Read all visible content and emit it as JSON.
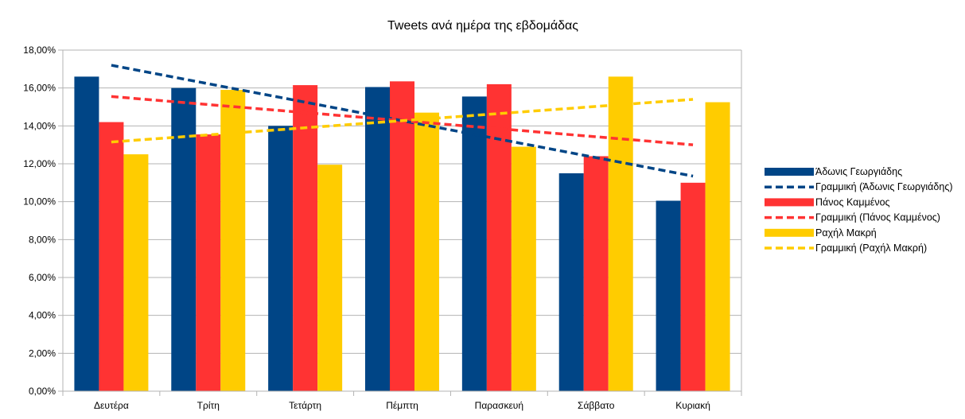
{
  "chart_data": {
    "type": "bar",
    "title": "Tweets ανά ημέρα της εβδομάδας",
    "xlabel": "",
    "ylabel": "",
    "categories": [
      "Δευτέρα",
      "Τρίτη",
      "Τετάρτη",
      "Πέμπτη",
      "Παρασκευή",
      "Σάββατο",
      "Κυριακή"
    ],
    "series": [
      {
        "name": "Άδωνις Γεωργιάδης",
        "color": "#004586",
        "values": [
          16.6,
          16.0,
          14.0,
          16.05,
          15.55,
          11.5,
          10.05
        ]
      },
      {
        "name": "Πάνος Καμμένος",
        "color": "#ff3333",
        "values": [
          14.2,
          13.55,
          16.15,
          16.35,
          16.2,
          12.4,
          11.0
        ]
      },
      {
        "name": "Ραχήλ Μακρή",
        "color": "#ffcc00",
        "values": [
          12.5,
          15.9,
          11.95,
          14.7,
          12.9,
          16.6,
          15.25
        ]
      }
    ],
    "trendlines": [
      {
        "name": "Γραμμική (Άδωνις Γεωργιάδης)",
        "color": "#004586",
        "start": 17.2,
        "end": 11.35
      },
      {
        "name": "Γραμμική (Πάνος Καμμένος)",
        "color": "#ff3333",
        "start": 15.55,
        "end": 13.0
      },
      {
        "name": "Γραμμική (Ραχήλ Μακρή)",
        "color": "#ffcc00",
        "start": 13.15,
        "end": 15.4
      }
    ],
    "ylim": [
      0,
      18
    ],
    "yticks": [
      0,
      2,
      4,
      6,
      8,
      10,
      12,
      14,
      16,
      18
    ],
    "ytick_labels": [
      "0,00%",
      "2,00%",
      "4,00%",
      "6,00%",
      "8,00%",
      "10,00%",
      "12,00%",
      "14,00%",
      "16,00%",
      "18,00%"
    ],
    "grid": true,
    "legend_position": "right"
  }
}
